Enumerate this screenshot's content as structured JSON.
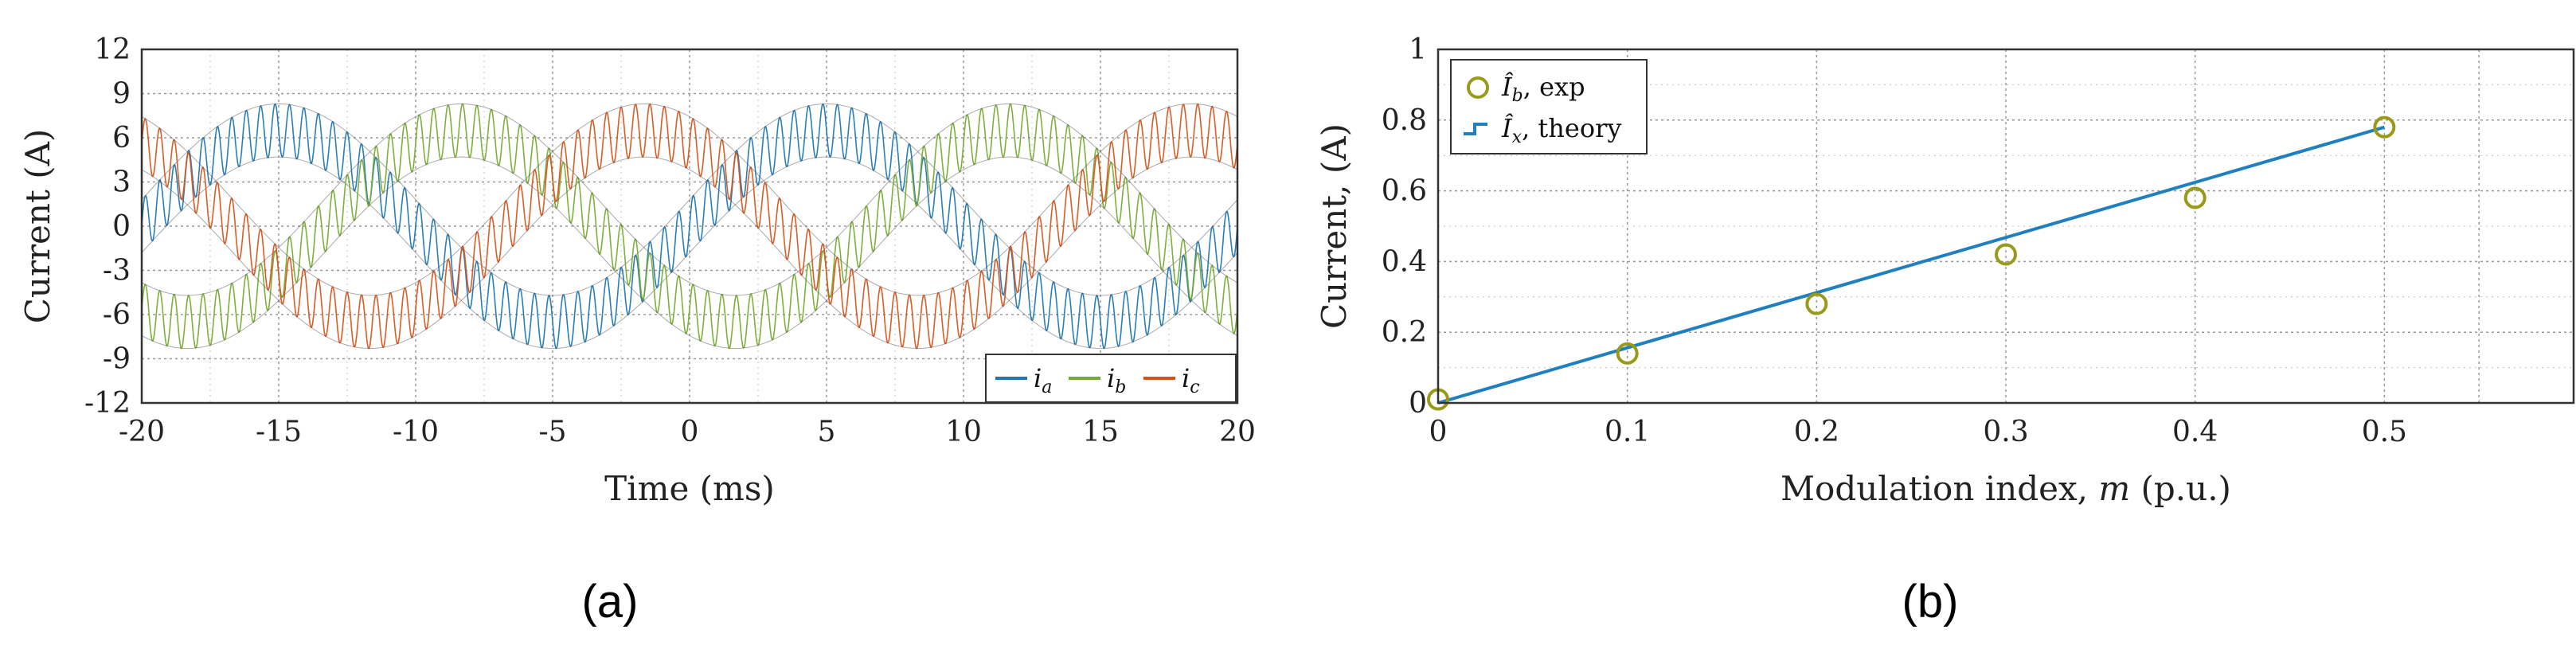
{
  "chart_data": [
    {
      "panel": "(a)",
      "type": "line",
      "xlabel": "Time (ms)",
      "ylabel": "Current (A)",
      "xlim": [
        -20,
        20
      ],
      "ylim": [
        -12,
        12
      ],
      "xticks": [
        -20,
        -15,
        -10,
        -5,
        0,
        5,
        10,
        15,
        20
      ],
      "yticks": [
        12,
        9,
        6,
        3,
        0,
        -3,
        -6,
        -9,
        -12
      ],
      "x_tick_labels": [
        "-20",
        "-15",
        "-10",
        "-5",
        "0",
        "5",
        "10",
        "15",
        "20"
      ],
      "y_tick_labels": [
        "12",
        "9",
        "6",
        "3",
        "0",
        "-3",
        "-6",
        "-9",
        "-12"
      ],
      "grid": true,
      "legend_position": "bottom-right",
      "waveform": {
        "fundamental_frequency_hz": 50,
        "fundamental_amplitude_a": 6.5,
        "ripple_amplitude_a": 1.8,
        "ripple_cycles_per_fundamental": 38
      },
      "series": [
        {
          "name": "i_a",
          "main": "i",
          "sub": "a",
          "color": "#1f77b4",
          "phase_deg": 0
        },
        {
          "name": "i_b",
          "main": "i",
          "sub": "b",
          "color": "#77ac30",
          "phase_deg": -120
        },
        {
          "name": "i_c",
          "main": "i",
          "sub": "c",
          "color": "#d95319",
          "phase_deg": 120
        }
      ]
    },
    {
      "panel": "(b)",
      "type": "line",
      "xlabel": "Modulation index, m (p.u.)",
      "ylabel": "Current, (A)",
      "xlim": [
        0,
        0.6
      ],
      "ylim": [
        0,
        1
      ],
      "xticks": [
        0,
        0.1,
        0.2,
        0.3,
        0.4,
        0.5
      ],
      "yticks": [
        0,
        0.2,
        0.4,
        0.6,
        0.8,
        1
      ],
      "x_tick_labels": [
        "0",
        "0.1",
        "0.2",
        "0.3",
        "0.4",
        "0.5"
      ],
      "y_tick_labels": [
        "0",
        "0.2",
        "0.4",
        "0.6",
        "0.8",
        "1"
      ],
      "grid": true,
      "legend_position": "top-left",
      "series": [
        {
          "name": "Î_b, exp",
          "type": "scatter",
          "color": "#9a9a1a",
          "x": [
            0,
            0.1,
            0.2,
            0.3,
            0.4,
            0.5
          ],
          "y": [
            0.01,
            0.14,
            0.28,
            0.42,
            0.58,
            0.78
          ]
        },
        {
          "name": "Î_x, theory",
          "type": "line",
          "color": "#1f7fbf",
          "x": [
            0,
            0.5
          ],
          "y": [
            0,
            0.78
          ]
        }
      ]
    }
  ],
  "panel_a": {
    "label": "(a)",
    "xlabel": "Time (ms)",
    "ylabel": "Current (A)",
    "legend": [
      {
        "main": "i",
        "sub": "a"
      },
      {
        "main": "i",
        "sub": "b"
      },
      {
        "main": "i",
        "sub": "c"
      }
    ]
  },
  "panel_b": {
    "label": "(b)",
    "xlabel_prefix": "Modulation index, ",
    "xlabel_var": "m",
    "xlabel_suffix": " (p.u.)",
    "ylabel": "Current, (A)",
    "legend": [
      {
        "hat": "Î",
        "sub": "b",
        "rest": ", exp"
      },
      {
        "hat": "Î",
        "sub": "x",
        "rest": ", theory"
      }
    ]
  }
}
